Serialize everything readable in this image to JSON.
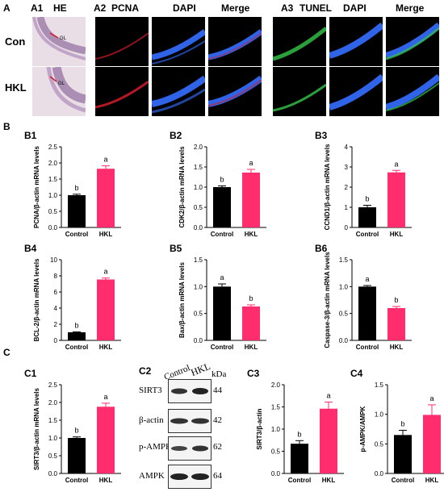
{
  "panel_letters": {
    "A": "A",
    "B": "B",
    "C": "C"
  },
  "panelA": {
    "sub_titles": {
      "a1": "A1",
      "he": "HE",
      "a2": "A2",
      "pcna": "PCNA",
      "dapi1": "DAPI",
      "merge1": "Merge",
      "a3": "A3",
      "tunel": "TUNEL",
      "dapi2": "DAPI",
      "merge2": "Merge"
    },
    "rows": [
      "Con",
      "HKL"
    ],
    "he_marker": "GL",
    "colors": {
      "he_bg": "#e9dde6",
      "he_layer": "#9b7aa8",
      "pcna": "#d11c2a",
      "dapi": "#2f63e8",
      "tunel": "#34c84a"
    }
  },
  "colors": {
    "control": "#000000",
    "hkl": "#ff2d6e"
  },
  "chart_data": [
    {
      "id": "B1",
      "type": "bar",
      "panel_label": "B1",
      "categories": [
        "Control",
        "HKL"
      ],
      "values": [
        1.0,
        1.82
      ],
      "errors": [
        0.03,
        0.09
      ],
      "sig": [
        "b",
        "a"
      ],
      "ylabel": "PCNA/β-actin mRNA levels",
      "ylim": [
        0,
        2.5
      ],
      "yticks": [
        "0.0",
        "0.5",
        "1.0",
        "1.5",
        "2.0",
        "2.5"
      ]
    },
    {
      "id": "B2",
      "type": "bar",
      "panel_label": "B2",
      "categories": [
        "Control",
        "HKL"
      ],
      "values": [
        1.0,
        1.36
      ],
      "errors": [
        0.03,
        0.08
      ],
      "sig": [
        "b",
        "a"
      ],
      "ylabel": "CDK2/β-actin mRNA levels",
      "ylim": [
        0,
        2.0
      ],
      "yticks": [
        "0.0",
        "0.5",
        "1.0",
        "1.5",
        "2.0"
      ]
    },
    {
      "id": "B3",
      "type": "bar",
      "panel_label": "B3",
      "categories": [
        "Control",
        "HKL"
      ],
      "values": [
        1.0,
        2.73
      ],
      "errors": [
        0.1,
        0.1
      ],
      "sig": [
        "b",
        "a"
      ],
      "ylabel": "CCND1/β-actin mRNA levels",
      "ylim": [
        0,
        4
      ],
      "yticks": [
        "0",
        "1",
        "2",
        "3",
        "4"
      ]
    },
    {
      "id": "B4",
      "type": "bar",
      "panel_label": "B4",
      "categories": [
        "Control",
        "HKL"
      ],
      "values": [
        1.0,
        7.55
      ],
      "errors": [
        0.05,
        0.18
      ],
      "sig": [
        "b",
        "a"
      ],
      "ylabel": "BCL-2/β-actin mRNA levels",
      "ylim": [
        0,
        10
      ],
      "yticks": [
        "0",
        "2",
        "4",
        "6",
        "8",
        "10"
      ]
    },
    {
      "id": "B5",
      "type": "bar",
      "panel_label": "B5",
      "categories": [
        "Control",
        "HKL"
      ],
      "values": [
        1.0,
        0.63
      ],
      "errors": [
        0.05,
        0.03
      ],
      "sig": [
        "a",
        "b"
      ],
      "ylabel": "Bax/β-actin mRNA levels",
      "ylim": [
        0,
        1.5
      ],
      "yticks": [
        "0.0",
        "0.5",
        "1.0",
        "1.5"
      ]
    },
    {
      "id": "B6",
      "type": "bar",
      "panel_label": "B6",
      "categories": [
        "Control",
        "HKL"
      ],
      "values": [
        1.0,
        0.6
      ],
      "errors": [
        0.02,
        0.03
      ],
      "sig": [
        "a",
        "b"
      ],
      "ylabel": "Caspase-3/β-actin mRNA levels",
      "ylim": [
        0,
        1.5
      ],
      "yticks": [
        "0.0",
        "0.5",
        "1.0",
        "1.5"
      ]
    },
    {
      "id": "C1",
      "type": "bar",
      "panel_label": "C1",
      "categories": [
        "Control",
        "HKL"
      ],
      "values": [
        1.0,
        1.88
      ],
      "errors": [
        0.03,
        0.1
      ],
      "sig": [
        "b",
        "a"
      ],
      "ylabel": "SIRT3/β-actin mRNA levels",
      "ylim": [
        0,
        2.5
      ],
      "yticks": [
        "0.0",
        "0.5",
        "1.0",
        "1.5",
        "2.0",
        "2.5"
      ]
    },
    {
      "id": "C3",
      "type": "bar",
      "panel_label": "C3",
      "categories": [
        "Control",
        "HKL"
      ],
      "values": [
        0.67,
        1.46
      ],
      "errors": [
        0.07,
        0.15
      ],
      "sig": [
        "b",
        "a"
      ],
      "ylabel": "SIRT3/β-actin",
      "ylim": [
        0,
        2.0
      ],
      "yticks": [
        "0.0",
        "0.5",
        "1.0",
        "1.5",
        "2.0"
      ]
    },
    {
      "id": "C4",
      "type": "bar",
      "panel_label": "C4",
      "categories": [
        "Control",
        "HKL"
      ],
      "values": [
        0.65,
        0.99
      ],
      "errors": [
        0.08,
        0.17
      ],
      "sig": [
        "b",
        "a"
      ],
      "ylabel": "p-AMPK/AMPK",
      "ylim": [
        0,
        1.5
      ],
      "yticks": [
        "0.0",
        "0.5",
        "1.0",
        "1.5"
      ]
    }
  ],
  "blot": {
    "panel_label": "C2",
    "lanes": [
      "Control",
      "HKL"
    ],
    "unit": "kDa",
    "rows": [
      {
        "name": "SIRT3",
        "kda": "44"
      },
      {
        "name": "β-actin",
        "kda": "42"
      },
      {
        "name": "p-AMPK",
        "kda": "62"
      },
      {
        "name": "AMPK",
        "kda": "64"
      }
    ]
  }
}
